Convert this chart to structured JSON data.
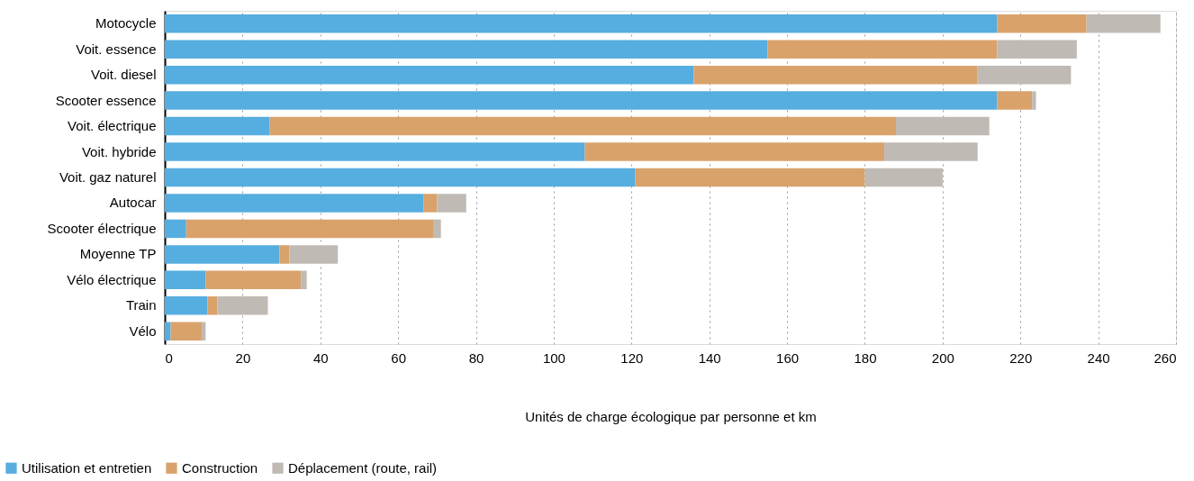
{
  "chart_data": {
    "type": "bar",
    "orientation": "horizontal",
    "stacked": true,
    "xlabel": "Unités de charge écologique par personne et km",
    "categories": [
      "Motocycle",
      "Voit. essence",
      "Voit. diesel",
      "Scooter essence",
      "Voit. électrique",
      "Voit. hybride",
      "Voit. gaz naturel",
      "Autocar",
      "Scooter électrique",
      "Moyenne TP",
      "Vélo électrique",
      "Train",
      "Vélo"
    ],
    "series": [
      {
        "name": "Utilisation et entretien",
        "color": "#56addf",
        "values": [
          214,
          155,
          136,
          214,
          27,
          108,
          121,
          66.5,
          5.5,
          29.5,
          10.5,
          11,
          1.5
        ]
      },
      {
        "name": "Construction",
        "color": "#d9a26b",
        "values": [
          23,
          59,
          73,
          9,
          161,
          77,
          59,
          3.5,
          63.5,
          2.5,
          24.5,
          2.5,
          8
        ]
      },
      {
        "name": "Déplacement (route, rail)",
        "color": "#c0bab4",
        "values": [
          19,
          20.5,
          24,
          1,
          24,
          24,
          20,
          7.5,
          2,
          12.5,
          1.5,
          13,
          1
        ]
      }
    ],
    "xlim": [
      0,
      260
    ],
    "xticks": [
      0,
      20,
      40,
      60,
      80,
      100,
      120,
      140,
      160,
      180,
      200,
      220,
      240,
      260
    ],
    "grid": "x",
    "legend": "bottom left"
  }
}
